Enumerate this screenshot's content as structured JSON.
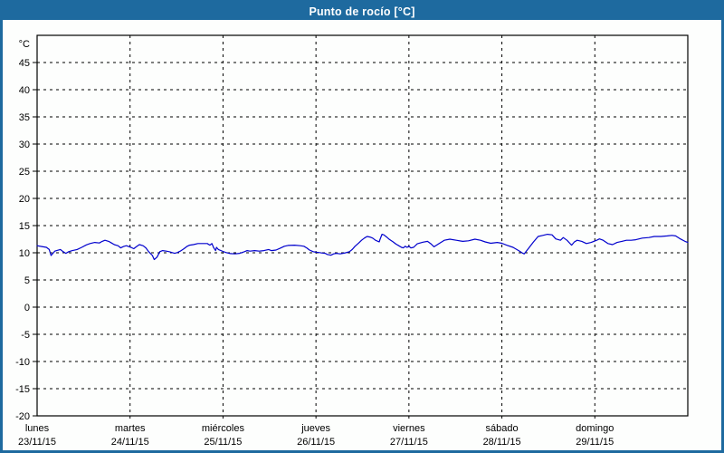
{
  "window": {
    "title": "Punto de rocío [°C]"
  },
  "colors": {
    "titlebar_bg": "#1e6a9f",
    "titlebar_text": "#ffffff",
    "window_border": "#1e6a9f",
    "plot_background": "#fdfefd",
    "axis": "#000000",
    "grid": "#000000",
    "series_line": "#0000cd"
  },
  "chart_data": {
    "type": "line",
    "title": "Punto de rocío [°C]",
    "y_unit_label": "°C",
    "ylim": [
      -20,
      50
    ],
    "yticks": [
      45,
      40,
      35,
      30,
      25,
      20,
      15,
      10,
      5,
      0,
      -5,
      -10,
      -15,
      -20
    ],
    "xlim_days": [
      0,
      7
    ],
    "grid": "dashed",
    "legend": "none",
    "x_days": [
      {
        "weekday": "lunes",
        "date": "23/11/15"
      },
      {
        "weekday": "martes",
        "date": "24/11/15"
      },
      {
        "weekday": "miércoles",
        "date": "25/11/15"
      },
      {
        "weekday": "jueves",
        "date": "26/11/15"
      },
      {
        "weekday": "viernes",
        "date": "27/11/15"
      },
      {
        "weekday": "sábado",
        "date": "28/11/15"
      },
      {
        "weekday": "domingo",
        "date": "29/11/15"
      }
    ],
    "series": [
      {
        "name": "Punto de rocío",
        "points": [
          [
            0.0,
            11.3
          ],
          [
            0.05,
            11.15
          ],
          [
            0.1,
            11.0
          ],
          [
            0.13,
            10.6
          ],
          [
            0.15,
            9.5
          ],
          [
            0.17,
            9.9
          ],
          [
            0.19,
            10.3
          ],
          [
            0.21,
            10.4
          ],
          [
            0.25,
            10.6
          ],
          [
            0.28,
            10.2
          ],
          [
            0.31,
            9.9
          ],
          [
            0.34,
            10.2
          ],
          [
            0.38,
            10.4
          ],
          [
            0.43,
            10.6
          ],
          [
            0.48,
            11.0
          ],
          [
            0.53,
            11.45
          ],
          [
            0.57,
            11.7
          ],
          [
            0.62,
            11.9
          ],
          [
            0.67,
            11.8
          ],
          [
            0.7,
            12.1
          ],
          [
            0.73,
            12.3
          ],
          [
            0.77,
            12.1
          ],
          [
            0.8,
            11.8
          ],
          [
            0.83,
            11.5
          ],
          [
            0.87,
            11.3
          ],
          [
            0.9,
            10.9
          ],
          [
            0.93,
            11.15
          ],
          [
            0.96,
            11.3
          ],
          [
            1.01,
            11.0
          ],
          [
            1.04,
            10.75
          ],
          [
            1.07,
            11.15
          ],
          [
            1.1,
            11.5
          ],
          [
            1.14,
            11.3
          ],
          [
            1.17,
            10.9
          ],
          [
            1.2,
            10.2
          ],
          [
            1.24,
            9.5
          ],
          [
            1.26,
            8.75
          ],
          [
            1.29,
            9.2
          ],
          [
            1.32,
            10.2
          ],
          [
            1.35,
            10.4
          ],
          [
            1.39,
            10.3
          ],
          [
            1.42,
            10.2
          ],
          [
            1.45,
            10.05
          ],
          [
            1.48,
            9.9
          ],
          [
            1.51,
            10.05
          ],
          [
            1.54,
            10.3
          ],
          [
            1.58,
            10.75
          ],
          [
            1.61,
            11.15
          ],
          [
            1.64,
            11.4
          ],
          [
            1.68,
            11.5
          ],
          [
            1.73,
            11.7
          ],
          [
            1.78,
            11.7
          ],
          [
            1.83,
            11.7
          ],
          [
            1.86,
            11.4
          ],
          [
            1.88,
            11.7
          ],
          [
            1.9,
            10.9
          ],
          [
            1.92,
            10.4
          ],
          [
            1.93,
            11.0
          ],
          [
            1.95,
            10.6
          ],
          [
            2.0,
            10.25
          ],
          [
            2.03,
            10.05
          ],
          [
            2.08,
            9.85
          ],
          [
            2.13,
            9.8
          ],
          [
            2.18,
            9.9
          ],
          [
            2.23,
            10.2
          ],
          [
            2.26,
            10.4
          ],
          [
            2.29,
            10.3
          ],
          [
            2.34,
            10.4
          ],
          [
            2.39,
            10.3
          ],
          [
            2.44,
            10.4
          ],
          [
            2.49,
            10.6
          ],
          [
            2.52,
            10.4
          ],
          [
            2.57,
            10.5
          ],
          [
            2.61,
            10.8
          ],
          [
            2.66,
            11.2
          ],
          [
            2.7,
            11.35
          ],
          [
            2.77,
            11.4
          ],
          [
            2.83,
            11.3
          ],
          [
            2.87,
            11.2
          ],
          [
            2.9,
            10.9
          ],
          [
            2.93,
            10.5
          ],
          [
            2.97,
            10.2
          ],
          [
            3.0,
            10.1
          ],
          [
            3.03,
            10.05
          ],
          [
            3.07,
            9.95
          ],
          [
            3.1,
            9.9
          ],
          [
            3.12,
            9.7
          ],
          [
            3.16,
            9.55
          ],
          [
            3.19,
            9.8
          ],
          [
            3.22,
            9.9
          ],
          [
            3.26,
            9.8
          ],
          [
            3.29,
            9.9
          ],
          [
            3.32,
            10.0
          ],
          [
            3.36,
            10.2
          ],
          [
            3.39,
            10.6
          ],
          [
            3.42,
            11.2
          ],
          [
            3.46,
            11.8
          ],
          [
            3.49,
            12.3
          ],
          [
            3.52,
            12.7
          ],
          [
            3.55,
            13.0
          ],
          [
            3.58,
            12.9
          ],
          [
            3.61,
            12.7
          ],
          [
            3.64,
            12.3
          ],
          [
            3.68,
            12.0
          ],
          [
            3.69,
            12.5
          ],
          [
            3.71,
            13.4
          ],
          [
            3.73,
            13.3
          ],
          [
            3.76,
            12.9
          ],
          [
            3.79,
            12.45
          ],
          [
            3.83,
            12.0
          ],
          [
            3.86,
            11.6
          ],
          [
            3.89,
            11.3
          ],
          [
            3.92,
            11.0
          ],
          [
            3.94,
            10.9
          ],
          [
            3.96,
            11.2
          ],
          [
            3.98,
            11.0
          ],
          [
            4.0,
            11.2
          ],
          [
            4.02,
            10.9
          ],
          [
            4.05,
            11.0
          ],
          [
            4.09,
            11.65
          ],
          [
            4.15,
            11.95
          ],
          [
            4.2,
            12.1
          ],
          [
            4.24,
            11.6
          ],
          [
            4.27,
            11.1
          ],
          [
            4.32,
            11.65
          ],
          [
            4.38,
            12.3
          ],
          [
            4.44,
            12.5
          ],
          [
            4.51,
            12.3
          ],
          [
            4.58,
            12.1
          ],
          [
            4.64,
            12.2
          ],
          [
            4.71,
            12.5
          ],
          [
            4.77,
            12.3
          ],
          [
            4.82,
            12.0
          ],
          [
            4.88,
            11.75
          ],
          [
            4.95,
            11.9
          ],
          [
            5.0,
            11.75
          ],
          [
            5.05,
            11.4
          ],
          [
            5.12,
            11.0
          ],
          [
            5.18,
            10.4
          ],
          [
            5.22,
            9.95
          ],
          [
            5.24,
            9.8
          ],
          [
            5.29,
            10.9
          ],
          [
            5.34,
            12.0
          ],
          [
            5.39,
            13.0
          ],
          [
            5.44,
            13.2
          ],
          [
            5.49,
            13.4
          ],
          [
            5.54,
            13.3
          ],
          [
            5.58,
            12.55
          ],
          [
            5.63,
            12.3
          ],
          [
            5.66,
            12.8
          ],
          [
            5.7,
            12.3
          ],
          [
            5.75,
            11.4
          ],
          [
            5.78,
            12.0
          ],
          [
            5.81,
            12.3
          ],
          [
            5.86,
            12.1
          ],
          [
            5.91,
            11.7
          ],
          [
            5.96,
            11.9
          ],
          [
            6.02,
            12.3
          ],
          [
            6.05,
            12.55
          ],
          [
            6.09,
            12.3
          ],
          [
            6.14,
            11.7
          ],
          [
            6.19,
            11.5
          ],
          [
            6.24,
            11.9
          ],
          [
            6.29,
            12.1
          ],
          [
            6.34,
            12.3
          ],
          [
            6.39,
            12.3
          ],
          [
            6.44,
            12.4
          ],
          [
            6.51,
            12.7
          ],
          [
            6.58,
            12.8
          ],
          [
            6.64,
            13.0
          ],
          [
            6.71,
            13.0
          ],
          [
            6.78,
            13.1
          ],
          [
            6.83,
            13.2
          ],
          [
            6.87,
            13.1
          ],
          [
            6.92,
            12.55
          ],
          [
            6.97,
            12.1
          ],
          [
            7.0,
            11.9
          ]
        ]
      }
    ]
  }
}
